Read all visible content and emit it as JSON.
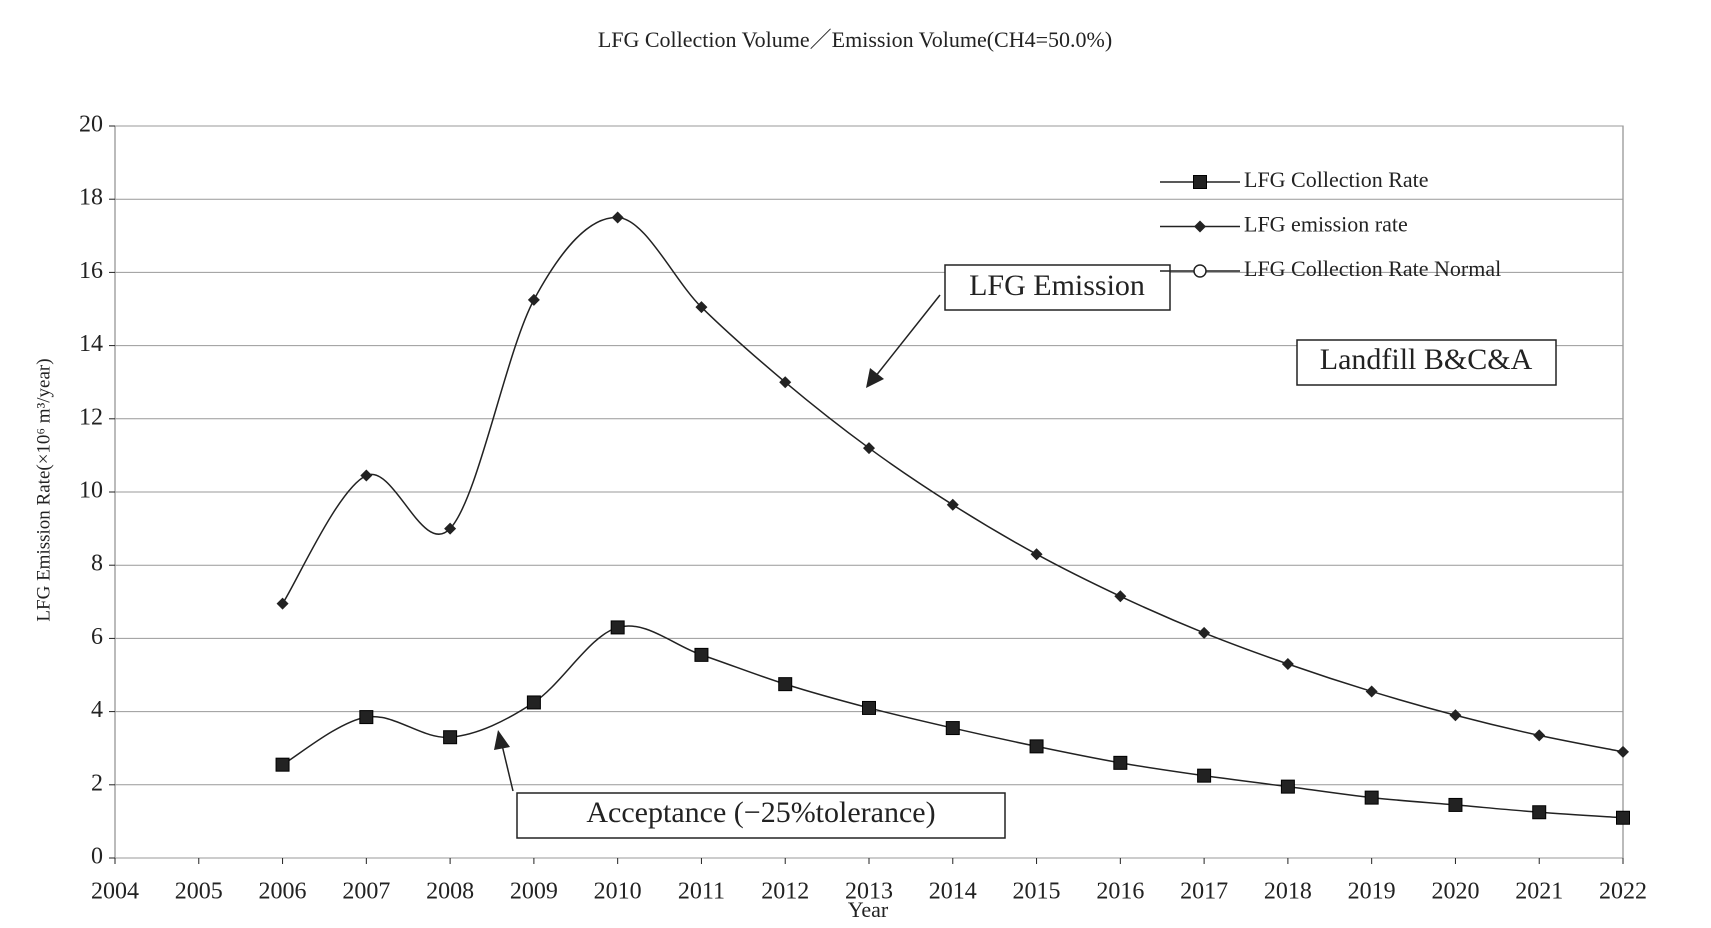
{
  "chart_data": {
    "type": "line",
    "title": "LFG Collection Volume／Emission Volume(CH4=50.0%)",
    "x_label": "Year",
    "y_label": "LFG Emission Rate(×10⁶ m³/year)",
    "x": [
      2006,
      2007,
      2008,
      2009,
      2010,
      2011,
      2012,
      2013,
      2014,
      2015,
      2016,
      2017,
      2018,
      2019,
      2020,
      2021,
      2022
    ],
    "series": [
      {
        "name": "LFG Collection Rate",
        "color": "#222222",
        "marker": "square",
        "values": [
          2.55,
          3.85,
          3.3,
          4.25,
          6.3,
          5.55,
          4.75,
          4.1,
          3.55,
          3.05,
          2.6,
          2.25,
          1.95,
          1.65,
          1.45,
          1.25,
          1.1
        ]
      },
      {
        "name": "LFG emission rate",
        "color": "#222222",
        "marker": "diamond",
        "values": [
          6.95,
          10.45,
          9.0,
          15.25,
          17.5,
          15.05,
          13.0,
          11.2,
          9.65,
          8.3,
          7.15,
          6.15,
          5.3,
          4.55,
          3.9,
          3.35,
          2.9
        ]
      },
      {
        "name": "LFG Collection Rate Normal",
        "color": "#222222",
        "marker": "circle",
        "values": [
          null,
          null,
          null,
          null,
          null,
          null,
          null,
          null,
          null,
          null,
          null,
          null,
          null,
          null,
          null,
          null,
          null
        ]
      }
    ],
    "annotations": [
      "LFG Emission",
      "Landfill B&C&A",
      "Acceptance (−25%tolerance)"
    ],
    "xlim": [
      2004,
      2022
    ],
    "xticks": [
      2004,
      2005,
      2006,
      2007,
      2008,
      2009,
      2010,
      2011,
      2012,
      2013,
      2014,
      2015,
      2016,
      2017,
      2018,
      2019,
      2020,
      2021,
      2022
    ],
    "ylim": [
      0,
      20
    ],
    "yticks": [
      0,
      2,
      4,
      6,
      8,
      10,
      12,
      14,
      16,
      18,
      20
    ],
    "grid": true,
    "legend": "top-right"
  }
}
